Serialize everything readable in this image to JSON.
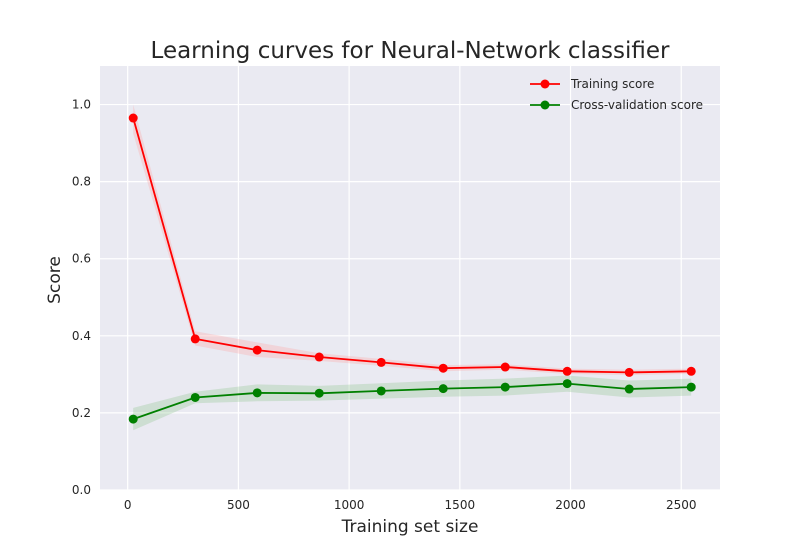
{
  "chart_data": {
    "type": "line",
    "title": "Learning curves for Neural-Network classifier",
    "xlabel": "Training set size",
    "ylabel": "Score",
    "xlim": [
      -125,
      2675
    ],
    "ylim": [
      0.0,
      1.1
    ],
    "x_ticks": [
      0,
      500,
      1000,
      1500,
      2000,
      2500
    ],
    "y_ticks": [
      "0.0",
      "0.2",
      "0.4",
      "0.6",
      "0.8",
      "1.0"
    ],
    "grid": true,
    "legend_position": "top-right",
    "x": [
      25,
      305,
      585,
      865,
      1145,
      1425,
      1705,
      1985,
      2265,
      2545
    ],
    "series": [
      {
        "name": "Training score",
        "color": "#ff0000",
        "band_color": "#ff9999",
        "values": [
          0.965,
          0.392,
          0.363,
          0.345,
          0.331,
          0.316,
          0.319,
          0.308,
          0.305,
          0.308
        ],
        "band_lower": [
          0.925,
          0.375,
          0.345,
          0.335,
          0.322,
          0.308,
          0.312,
          0.301,
          0.298,
          0.301
        ],
        "band_upper": [
          1.0,
          0.412,
          0.383,
          0.355,
          0.34,
          0.324,
          0.326,
          0.315,
          0.312,
          0.315
        ]
      },
      {
        "name": "Cross-validation score",
        "color": "#008000",
        "band_color": "#80c080",
        "values": [
          0.184,
          0.24,
          0.252,
          0.251,
          0.257,
          0.263,
          0.267,
          0.276,
          0.262,
          0.267
        ],
        "band_lower": [
          0.155,
          0.225,
          0.23,
          0.232,
          0.237,
          0.242,
          0.245,
          0.255,
          0.24,
          0.245
        ],
        "band_upper": [
          0.213,
          0.255,
          0.274,
          0.27,
          0.277,
          0.284,
          0.289,
          0.297,
          0.284,
          0.289
        ]
      }
    ]
  },
  "colors": {
    "plot_background": "#eaeaf2",
    "grid": "#ffffff"
  }
}
